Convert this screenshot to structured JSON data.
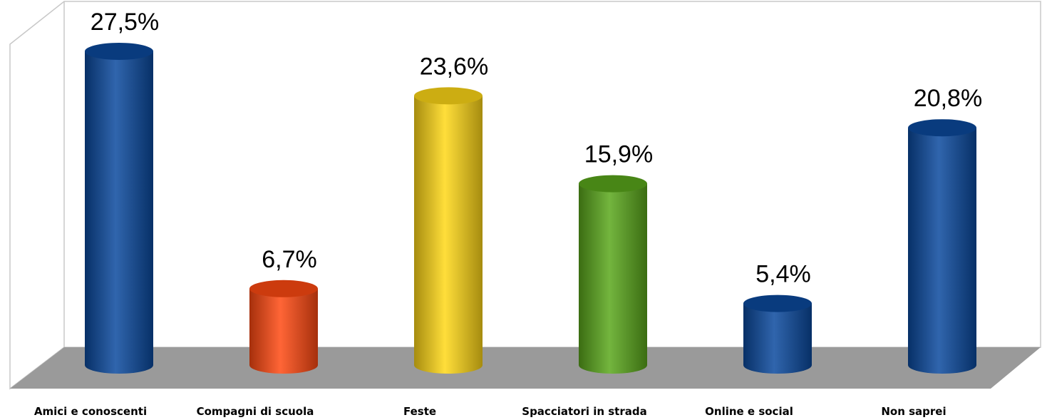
{
  "chart_data": {
    "type": "bar",
    "categories": [
      "Amici e conoscenti",
      "Compagni di scuola",
      "Feste",
      "Spacciatori in strada",
      "Online e social",
      "Non saprei"
    ],
    "values": [
      27.5,
      6.7,
      23.6,
      15.9,
      5.4,
      20.8
    ],
    "value_labels": [
      "27,5%",
      "6,7%",
      "23,6%",
      "15,9%",
      "5,4%",
      "20,8%"
    ],
    "colors": [
      "#0b4a9e",
      "#ff4a12",
      "#ffd817",
      "#5aa81c",
      "#0b4a9e",
      "#0b4a9e"
    ]
  }
}
